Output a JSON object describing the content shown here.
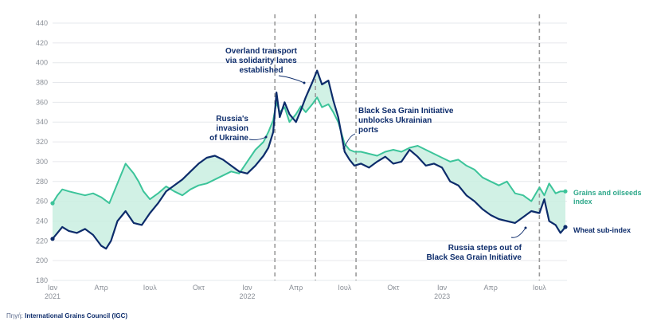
{
  "chart_data": {
    "type": "line",
    "title": "",
    "xlabel": "",
    "ylabel": "",
    "ylim": [
      180,
      440
    ],
    "yticks": [
      180,
      200,
      220,
      240,
      260,
      280,
      300,
      320,
      340,
      360,
      380,
      400,
      420,
      440
    ],
    "xlim": [
      0,
      31.7
    ],
    "x_unit": "months since Jan 2021",
    "xticks": [
      {
        "x": 0,
        "label": "Ιαν",
        "year": "2021"
      },
      {
        "x": 3,
        "label": "Απρ",
        "year": ""
      },
      {
        "x": 6,
        "label": "Ιουλ",
        "year": ""
      },
      {
        "x": 9,
        "label": "Οκτ",
        "year": ""
      },
      {
        "x": 12,
        "label": "Ιαν",
        "year": "2022"
      },
      {
        "x": 15,
        "label": "Απρ",
        "year": ""
      },
      {
        "x": 18,
        "label": "Ιουλ",
        "year": ""
      },
      {
        "x": 21,
        "label": "Οκτ",
        "year": ""
      },
      {
        "x": 24,
        "label": "Ιαν",
        "year": "2023"
      },
      {
        "x": 27,
        "label": "Απρ",
        "year": ""
      },
      {
        "x": 30,
        "label": "Ιουλ",
        "year": ""
      }
    ],
    "event_lines": [
      13.7,
      16.2,
      18.7,
      30.0
    ],
    "series": [
      {
        "name": "Grains and oilseeds index",
        "color": "#3cc49a",
        "x": [
          0,
          0.3,
          0.6,
          1.0,
          1.5,
          2.0,
          2.5,
          3.0,
          3.5,
          4.0,
          4.5,
          5.0,
          5.3,
          5.6,
          6.0,
          6.5,
          7.0,
          7.5,
          8.0,
          8.5,
          9.0,
          9.5,
          10.0,
          10.5,
          11.0,
          11.5,
          12.0,
          12.5,
          13.0,
          13.3,
          13.6,
          13.8,
          14.0,
          14.3,
          14.6,
          15.0,
          15.3,
          15.6,
          16.0,
          16.3,
          16.6,
          17.0,
          17.3,
          17.6,
          18.0,
          18.3,
          18.6,
          19.0,
          19.5,
          20.0,
          20.5,
          21.0,
          21.5,
          22.0,
          22.5,
          23.0,
          23.5,
          24.0,
          24.5,
          25.0,
          25.5,
          26.0,
          26.5,
          27.0,
          27.5,
          28.0,
          28.5,
          29.0,
          29.5,
          30.0,
          30.3,
          30.6,
          31.0,
          31.3,
          31.6
        ],
        "values": [
          258,
          266,
          272,
          270,
          268,
          266,
          268,
          264,
          258,
          278,
          298,
          288,
          280,
          270,
          262,
          268,
          275,
          270,
          266,
          272,
          276,
          278,
          282,
          286,
          290,
          288,
          300,
          312,
          320,
          330,
          342,
          360,
          350,
          355,
          340,
          348,
          356,
          350,
          358,
          365,
          355,
          358,
          350,
          340,
          318,
          312,
          310,
          310,
          308,
          306,
          310,
          312,
          310,
          314,
          316,
          312,
          308,
          304,
          300,
          302,
          296,
          292,
          284,
          280,
          276,
          280,
          268,
          266,
          260,
          274,
          266,
          278,
          268,
          270,
          270
        ]
      },
      {
        "name": "Wheat sub-index",
        "color": "#0d2c6b",
        "x": [
          0,
          0.3,
          0.6,
          1.0,
          1.5,
          2.0,
          2.5,
          3.0,
          3.3,
          3.6,
          4.0,
          4.5,
          5.0,
          5.5,
          6.0,
          6.5,
          7.0,
          7.5,
          8.0,
          8.5,
          9.0,
          9.5,
          10.0,
          10.5,
          11.0,
          11.5,
          12.0,
          12.5,
          13.0,
          13.3,
          13.6,
          13.8,
          14.0,
          14.3,
          14.6,
          15.0,
          15.3,
          15.6,
          16.0,
          16.3,
          16.6,
          17.0,
          17.3,
          17.6,
          18.0,
          18.3,
          18.6,
          19.0,
          19.5,
          20.0,
          20.5,
          21.0,
          21.5,
          22.0,
          22.5,
          23.0,
          23.5,
          24.0,
          24.5,
          25.0,
          25.5,
          26.0,
          26.5,
          27.0,
          27.5,
          28.0,
          28.5,
          29.0,
          29.5,
          30.0,
          30.3,
          30.6,
          31.0,
          31.3,
          31.6
        ],
        "values": [
          222,
          228,
          234,
          230,
          228,
          232,
          226,
          215,
          212,
          220,
          240,
          250,
          238,
          236,
          248,
          258,
          270,
          276,
          282,
          290,
          298,
          304,
          306,
          302,
          296,
          290,
          288,
          296,
          306,
          314,
          330,
          370,
          345,
          360,
          348,
          340,
          352,
          365,
          380,
          392,
          378,
          382,
          362,
          345,
          310,
          302,
          296,
          298,
          294,
          300,
          305,
          298,
          300,
          312,
          305,
          296,
          298,
          294,
          280,
          276,
          266,
          260,
          252,
          246,
          242,
          240,
          238,
          244,
          250,
          248,
          262,
          240,
          236,
          228,
          234
        ]
      }
    ],
    "annotations": [
      {
        "id": "overland",
        "lines": [
          "Overland transport",
          "via solidarity lanes",
          "established"
        ]
      },
      {
        "id": "invasion",
        "lines": [
          "Russia's",
          "invasion",
          "of Ukraine"
        ]
      },
      {
        "id": "bsgi",
        "lines": [
          "Black Sea Grain Initiative",
          "unblocks Ukrainian",
          "ports"
        ]
      },
      {
        "id": "stepsout",
        "lines": [
          "Russia steps out of",
          "Black Sea Grain Initiative"
        ]
      }
    ],
    "legend": [
      {
        "series": "Grains and oilseeds index",
        "lines": [
          "Grains and oilseeds",
          "index"
        ]
      },
      {
        "series": "Wheat sub-index",
        "lines": [
          "Wheat sub-index"
        ]
      }
    ]
  },
  "source": {
    "prefix": "Πηγή:",
    "name": "International Grains Council (IGC)"
  },
  "colors": {
    "grain": "#3cc49a",
    "wheat": "#0d2c6b",
    "band": "#c9efe0",
    "grid": "#e6e8ec",
    "event": "#9a9a9a"
  }
}
